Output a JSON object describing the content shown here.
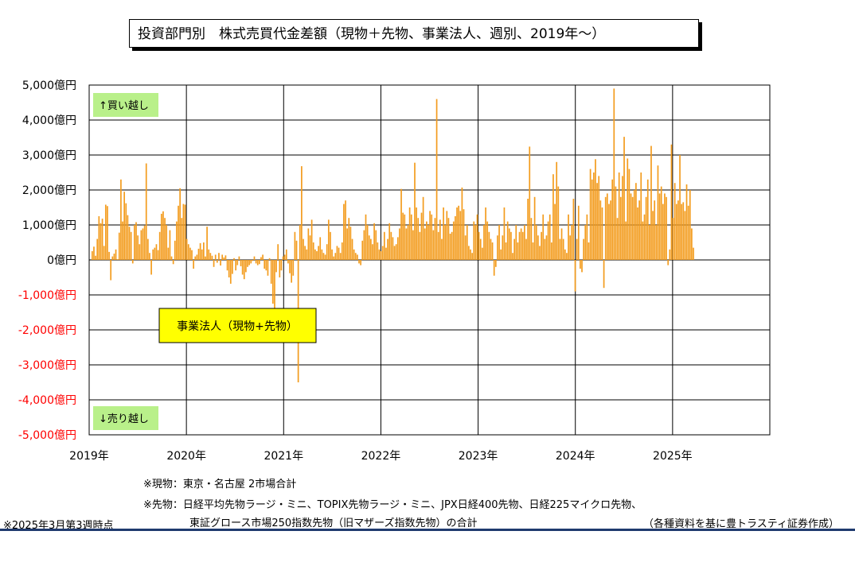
{
  "title": "投資部門別　株式売買代金差額（現物＋先物、事業法人、週別、2019年～）",
  "chart_data": {
    "type": "bar",
    "series": [
      {
        "name": "事業法人（現物+先物）",
        "color": "#f39c1e"
      }
    ],
    "ylim": [
      -5000,
      5000
    ],
    "y_ticks": [
      5000,
      4000,
      3000,
      2000,
      1000,
      0,
      -1000,
      -2000,
      -3000,
      -4000,
      -5000
    ],
    "y_tick_labels": [
      "5,000億円",
      "4,000億円",
      "3,000億円",
      "2,000億円",
      "1,000億円",
      "0億円",
      "-1,000億円",
      "-2,000億円",
      "-3,000億円",
      "-4,000億円",
      "-5,000億円"
    ],
    "negative_label_color": "#ff0000",
    "x_tick_labels": [
      "2019年",
      "2020年",
      "2021年",
      "2022年",
      "2023年",
      "2024年",
      "2025年"
    ],
    "x_range": [
      2019.0,
      2026.0
    ],
    "grid": true,
    "annotations": {
      "buy": "↑買い越し",
      "sell": "↓売り越し"
    },
    "values": [
      250,
      380,
      120,
      600,
      1250,
      1050,
      1180,
      400,
      1580,
      1540,
      230,
      -580,
      100,
      180,
      300,
      20,
      780,
      2300,
      1100,
      1950,
      1620,
      1280,
      950,
      800,
      -100,
      1000,
      1080,
      700,
      450,
      850,
      900,
      980,
      2760,
      600,
      200,
      -420,
      300,
      350,
      450,
      280,
      800,
      1320,
      1390,
      1200,
      1000,
      350,
      850,
      100,
      -120,
      550,
      1100,
      1550,
      2050,
      1200,
      1600,
      1580,
      600,
      450,
      350,
      280,
      -250,
      100,
      150,
      320,
      480,
      300,
      500,
      100,
      950,
      300,
      200,
      120,
      -200,
      150,
      -80,
      200,
      -160,
      150,
      70,
      130,
      -300,
      -500,
      -680,
      -400,
      50,
      -300,
      -150,
      100,
      -180,
      -420,
      -550,
      -350,
      -200,
      -150,
      -100,
      -30,
      100,
      -100,
      -150,
      -120,
      80,
      150,
      -250,
      -300,
      -450,
      50,
      -680,
      -1250,
      -2300,
      -350,
      450,
      -500,
      -300,
      100,
      150,
      300,
      -100,
      -380,
      -650,
      -450,
      800,
      550,
      -3500,
      1000,
      2680,
      600,
      400,
      300,
      900,
      700,
      1150,
      500,
      300,
      250,
      400,
      650,
      300,
      200,
      150,
      450,
      1150,
      800,
      300,
      100,
      200,
      400,
      350,
      200,
      500,
      1600,
      1700,
      900,
      1200,
      950,
      600,
      300,
      200,
      150,
      -100,
      -150,
      550,
      850,
      1300,
      1000,
      700,
      600,
      450,
      1050,
      850,
      500,
      300,
      250,
      400,
      800,
      350,
      600,
      1050,
      800,
      650,
      400,
      450,
      650,
      900,
      2030,
      1350,
      1300,
      900,
      1000,
      1500,
      1300,
      850,
      2780,
      1500,
      1200,
      800,
      1350,
      1800,
      900,
      1100,
      1000,
      1400,
      1300,
      850,
      1200,
      4600,
      800,
      1150,
      600,
      1500,
      1000,
      1400,
      1200,
      750,
      800,
      1100,
      1250,
      1500,
      1550,
      1400,
      2070,
      1450,
      700,
      1000,
      400,
      300,
      200,
      1100,
      1000,
      1300,
      800,
      600,
      350,
      1000,
      1500,
      1100,
      800,
      600,
      500,
      -450,
      -200,
      700,
      1000,
      300,
      700,
      1500,
      500,
      1100,
      900,
      800,
      200,
      600,
      1000,
      500,
      800,
      900,
      800,
      1000,
      600,
      1750,
      3240,
      1200,
      500,
      1800,
      1000,
      700,
      400,
      800,
      1300,
      600,
      700,
      1100,
      1300,
      500,
      2450,
      1600,
      2800,
      2100,
      600,
      900,
      600,
      300,
      200,
      1300,
      700,
      1000,
      1750,
      -900,
      600,
      1550,
      -250,
      -350,
      600,
      1000,
      1300,
      500,
      2600,
      2300,
      2500,
      2880,
      2200,
      2400,
      1700,
      1500,
      -800,
      1800,
      1900,
      1600,
      1700,
      2300,
      4900,
      2100,
      1200,
      2500,
      1800,
      2400,
      3520,
      1100,
      2900,
      2600,
      1900,
      1800,
      2000,
      2200,
      1500,
      1700,
      2500,
      1100,
      1300,
      1800,
      2300,
      1000,
      3260,
      1400,
      1700,
      1000,
      2700,
      1900,
      2100,
      1600,
      1900,
      1800,
      -150,
      300,
      3300,
      1200,
      2200,
      1600,
      1700,
      3000,
      1600,
      1650,
      1400,
      2160,
      1550,
      2000,
      900,
      350
    ]
  },
  "callout": "事業法人（現物+先物）",
  "notes": {
    "genbutsu": "※現物：東京・名古屋  2市場合計",
    "sakimono1": "※先物：日経平均先物ラージ・ミニ、TOPIX先物ラージ・ミニ、JPX日経400先物、日経225マイクロ先物、",
    "sakimono2": "東証グロース市場250指数先物（旧マザーズ指数先物）の合計",
    "as_of": "※2025年3月第3週時点",
    "source": "（各種資料を基に豊トラスティ証券作成）"
  }
}
